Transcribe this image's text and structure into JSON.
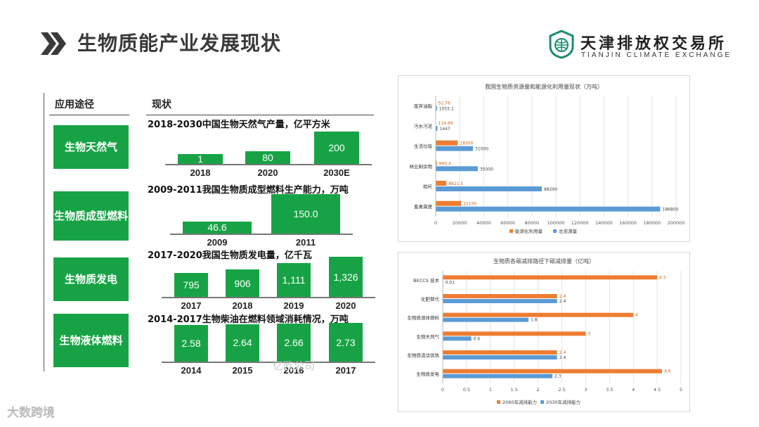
{
  "header": {
    "title": "生物质能产业发展现状",
    "logo_cn": "天津排放权交易所",
    "logo_en": "TIANJIN CLIMATE EXCHANGE",
    "icons": [
      "double-chevron-right-icon",
      "globe-leaf-logo-icon"
    ]
  },
  "left_panel": {
    "col1": "应用途径",
    "col2": "现状",
    "rows": [
      {
        "category": "生物天然气",
        "subtitle": "2018-2030中国生物天然气产量，亿平方米",
        "categories": [
          "2018",
          "2020",
          "2030E"
        ],
        "values": [
          1,
          80,
          200
        ],
        "labels": [
          "1",
          "80",
          "200"
        ]
      },
      {
        "category": "生物质成型燃料",
        "subtitle": "2009-2011我国生物质成型燃料生产能力，万吨",
        "categories": [
          "2009",
          "2011"
        ],
        "values": [
          46.6,
          150.0
        ],
        "labels": [
          "46.6",
          "150.0"
        ]
      },
      {
        "category": "生物质发电",
        "subtitle": "2017-2020我国生物质发电量，亿千瓦",
        "categories": [
          "2017",
          "2018",
          "2019",
          "2020"
        ],
        "values": [
          795,
          906,
          1111,
          1326
        ],
        "labels": [
          "795",
          "906",
          "1,111",
          "1,326"
        ]
      },
      {
        "category": "生物液体燃料",
        "subtitle": "2014-2017生物柴油在燃料领域消耗情况，万吨",
        "categories": [
          "2014",
          "2015",
          "2016",
          "2017"
        ],
        "values": [
          2.58,
          2.64,
          2.66,
          2.73
        ],
        "labels": [
          "2.58",
          "2.64",
          "2.66",
          "2.73"
        ]
      }
    ],
    "bar_color": "#17a345"
  },
  "chart_data": [
    {
      "type": "bar",
      "orientation": "horizontal",
      "title": "我国生物质资源量和能源化利用量现状（万吨）",
      "categories": [
        "废弃油脂",
        "污水污泥",
        "生活垃圾",
        "林业剩余物",
        "秸秆",
        "畜禽粪便"
      ],
      "series": [
        {
          "name": "能源化利用量",
          "color": "#ed7d31",
          "values": [
            52.76,
            114.69,
            18300,
            960.4,
            8821.5,
            21100
          ],
          "labels": [
            "52.76",
            "114.69",
            "18300",
            "960.4",
            "8821.5",
            "21100"
          ]
        },
        {
          "name": "总资源量",
          "color": "#5b9bd5",
          "values": [
            1055.1,
            1447,
            31000,
            35000,
            88290,
            186800
          ],
          "labels": [
            "1055.1",
            "1447",
            "31000",
            "35000",
            "88290",
            "186800"
          ]
        }
      ],
      "xlim": [
        0,
        200000
      ],
      "ticks": [
        "0",
        "20000",
        "40000",
        "60000",
        "80000",
        "100000",
        "120000",
        "140000",
        "160000",
        "180000",
        "200000"
      ],
      "grid": true,
      "legend": "bottom"
    },
    {
      "type": "bar",
      "orientation": "horizontal",
      "title": "生物质各碳减排路径下碳减排量（亿吨）",
      "categories": [
        "BECCS 技术",
        "化肥替代",
        "生物质液体燃料",
        "生物天然气",
        "生物质清洁供热",
        "生物质发电"
      ],
      "series": [
        {
          "name": "2060年减排能力",
          "color": "#ed7d31",
          "values": [
            4.5,
            2.4,
            4,
            3,
            2.4,
            4.6
          ],
          "labels": [
            "4.5",
            "2.4",
            "4",
            "3",
            "2.4",
            "4.6"
          ]
        },
        {
          "name": "2030年减排能力",
          "color": "#5b9bd5",
          "values": [
            0.01,
            2.4,
            1.8,
            0.6,
            2.4,
            2.3
          ],
          "labels": [
            "0.01",
            "2.4",
            "1.8",
            "0.6",
            "2.4",
            "2.3"
          ]
        }
      ],
      "xlim": [
        0,
        5
      ],
      "ticks": [
        "0",
        "0.5",
        "1",
        "1.5",
        "2",
        "2.5",
        "3",
        "3.5",
        "4",
        "4.5",
        "5"
      ],
      "grid": true,
      "legend": "bottom"
    }
  ],
  "watermarks": [
    "大数跨境",
    "亿欧公司"
  ]
}
